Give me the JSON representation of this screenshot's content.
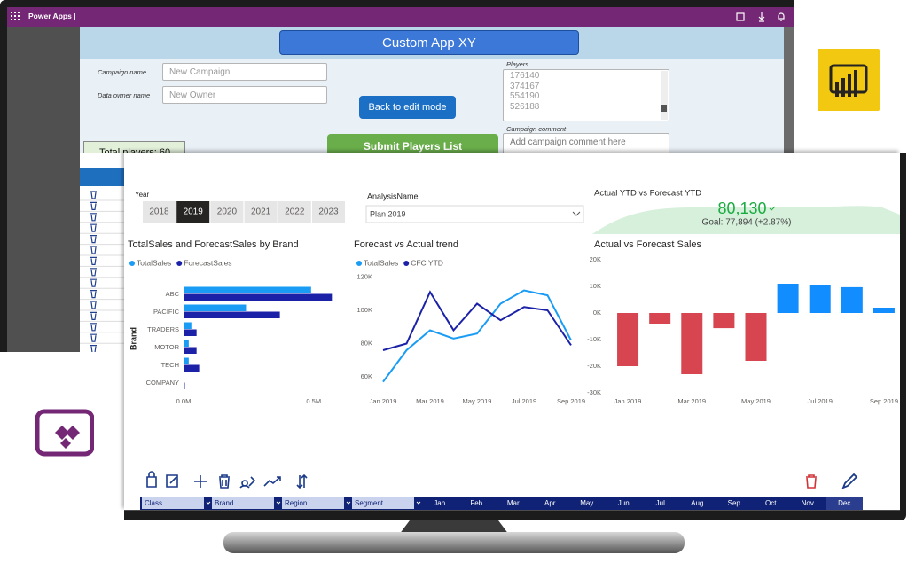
{
  "app": {
    "title": "Power Apps |",
    "header": "Custom App XY",
    "campaign_label": "Campaign name",
    "campaign_placeholder": "New Campaign",
    "owner_label": "Data owner name",
    "owner_placeholder": "New Owner",
    "back_button": "Back to edit mode",
    "players_label": "Players",
    "players": [
      "176140",
      "374167",
      "554190",
      "526188"
    ],
    "comment_label": "Campaign comment",
    "comment_placeholder": "Add campaign comment here",
    "total_players": "Total players: 60",
    "submit_button": "Submit Players List"
  },
  "report": {
    "year_label": "Year",
    "years": [
      "2018",
      "2019",
      "2020",
      "2021",
      "2022",
      "2023"
    ],
    "selected_year": "2019",
    "analysis_label": "AnalysisName",
    "analysis_value": "Plan 2019",
    "kpi": {
      "title": "Actual YTD vs Forecast YTD",
      "value": "80,130",
      "goal": "Goal: 77,894 (+2.87%)"
    },
    "filters": [
      "Class",
      "Brand",
      "Region",
      "Segment"
    ],
    "months": [
      "Jan",
      "Feb",
      "Mar",
      "Apr",
      "May",
      "Jun",
      "Jul",
      "Aug",
      "Sep",
      "Oct",
      "Nov",
      "Dec"
    ]
  },
  "chart_data": [
    {
      "type": "bar",
      "orientation": "horizontal",
      "title": "TotalSales and ForecastSales by Brand",
      "y_label": "Brand",
      "categories": [
        "ABC",
        "PACIFIC",
        "TRADERS",
        "MOTOR",
        "TECH",
        "COMPANY"
      ],
      "series": [
        {
          "name": "TotalSales",
          "color": "#1a9cf5",
          "values": [
            490000,
            240000,
            30000,
            20000,
            20000,
            3000
          ]
        },
        {
          "name": "ForecastSales",
          "color": "#1b22a8",
          "values": [
            570000,
            370000,
            50000,
            50000,
            60000,
            5000
          ]
        }
      ],
      "xlim": [
        0,
        620000
      ],
      "xticks": [
        {
          "value": 0,
          "label": "0.0M"
        },
        {
          "value": 500000,
          "label": "0.5M"
        }
      ]
    },
    {
      "type": "line",
      "title": "Forecast vs Actual trend",
      "categories": [
        "Jan 2019",
        null,
        "Mar 2019",
        null,
        "May 2019",
        null,
        "Jul 2019",
        null,
        "Sep 2019"
      ],
      "series": [
        {
          "name": "TotalSales",
          "color": "#1a9cf5",
          "values": [
            57000,
            76000,
            88000,
            83000,
            86000,
            104000,
            112000,
            109000,
            82000
          ]
        },
        {
          "name": "CFC YTD",
          "color": "#1b22a8",
          "values": [
            76000,
            80000,
            111000,
            88000,
            104000,
            94000,
            102000,
            100000,
            79000
          ]
        }
      ],
      "ylim": [
        52000,
        124000
      ],
      "yticks": [
        {
          "value": 60000,
          "label": "60K"
        },
        {
          "value": 80000,
          "label": "80K"
        },
        {
          "value": 100000,
          "label": "100K"
        },
        {
          "value": 120000,
          "label": "120K"
        }
      ]
    },
    {
      "type": "bar",
      "orientation": "vertical",
      "title": "Actual vs Forecast Sales",
      "categories": [
        "Jan 2019",
        null,
        "Mar 2019",
        null,
        "May 2019",
        null,
        "Jul 2019",
        null,
        "Sep 2019"
      ],
      "values": [
        -20000,
        -4000,
        -23000,
        -5700,
        -18000,
        11000,
        10500,
        9700,
        2000
      ],
      "color": "#118dff",
      "negative_color": "#d64550",
      "ylim": [
        -30000,
        20000
      ],
      "yticks": [
        {
          "value": 20000,
          "label": "20K"
        },
        {
          "value": 10000,
          "label": "10K"
        },
        {
          "value": 0,
          "label": "0K"
        },
        {
          "value": -10000,
          "label": "-10K"
        },
        {
          "value": -20000,
          "label": "-20K"
        },
        {
          "value": -30000,
          "label": "-30K"
        }
      ]
    }
  ]
}
